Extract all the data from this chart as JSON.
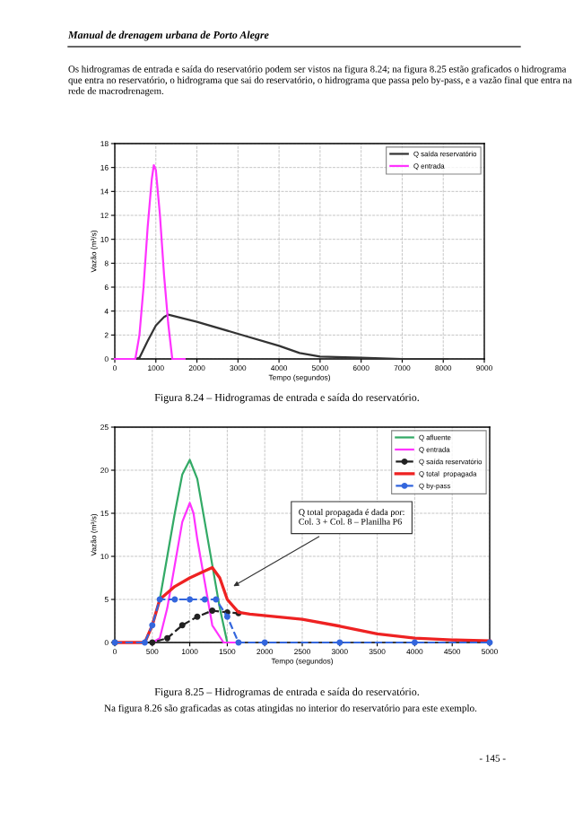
{
  "chart_data": [
    {
      "type": "line",
      "xlabel": "Tempo (segundos)",
      "ylabel": "Vazão (m³/s)",
      "xlim": [
        0,
        9000
      ],
      "xticks": [
        0,
        1000,
        2000,
        3000,
        4000,
        5000,
        6000,
        7000,
        8000,
        9000
      ],
      "ylim": [
        0,
        18
      ],
      "yticks": [
        0,
        2,
        4,
        6,
        8,
        10,
        12,
        14,
        16,
        18
      ],
      "grid": true,
      "legend": "top right",
      "annotations": [
        "Manual de drenagem urbana de Porto Alegre",
        "Os hidrogramas de entrada e saída do reservatório podem ser vistos na figura 8.24; na figura 8.25 estão graficados o hidrograma que entra no reservatório, o hidrograma que sai do reservatório, o hidrograma que passa pelo by-pass, e a vazão final que entra na rede de macrodrenagem.",
        "Figura 8.24 – Hidrogramas de entrada e saída do reservatório."
      ],
      "series": [
        {
          "name": "Q saída reservatório",
          "color": "#333333",
          "x": [
            0,
            500,
            600,
            800,
            1000,
            1200,
            1300,
            2000,
            3000,
            4000,
            4500,
            5000,
            6000,
            7000,
            8100
          ],
          "values": [
            0,
            0,
            0.1,
            1.5,
            2.8,
            3.5,
            3.7,
            3.1,
            2.1,
            1.1,
            0.5,
            0.2,
            0.1,
            0,
            0
          ]
        },
        {
          "name": "Q entrada",
          "color": "#ff33ff",
          "x": [
            0,
            500,
            600,
            700,
            800,
            900,
            950,
            1000,
            1100,
            1200,
            1300,
            1400,
            1500,
            1700
          ],
          "values": [
            0,
            0,
            2,
            6,
            11,
            15,
            16.2,
            15.8,
            12,
            7,
            3,
            0,
            0,
            0
          ]
        }
      ]
    },
    {
      "type": "line",
      "xlabel": "Tempo (segundos)",
      "ylabel": "Vazão (m³/s)",
      "xlim": [
        0,
        5000
      ],
      "xticks": [
        0,
        500,
        1000,
        1500,
        2000,
        2500,
        3000,
        3500,
        4000,
        4500,
        5000
      ],
      "ylim": [
        0,
        25
      ],
      "yticks": [
        0,
        5,
        10,
        15,
        20,
        25
      ],
      "grid": true,
      "legend": "top right",
      "annotations": [
        "Q total propagada é dada por:\nCol. 3 + Col. 8 – Planilha P6",
        "Figura 8.25 – Hidrogramas de entrada e saída do reservatório.",
        "Na figura 8.26 são graficadas as cotas atingidas no interior do reservatório para este exemplo.",
        "- 145 -"
      ],
      "series": [
        {
          "name": "Q afluente",
          "color": "#33aa66",
          "x": [
            400,
            500,
            600,
            700,
            800,
            900,
            1000,
            1100,
            1200,
            1300,
            1400,
            1500
          ],
          "values": [
            0,
            2,
            5,
            10,
            15,
            19.5,
            21.2,
            19,
            14,
            9,
            4,
            0
          ]
        },
        {
          "name": "Q entrada",
          "color": "#ff33ff",
          "x": [
            0,
            500,
            600,
            700,
            800,
            900,
            1000,
            1050,
            1100,
            1200,
            1300,
            1450,
            1700
          ],
          "values": [
            0,
            0,
            0.5,
            4,
            9,
            14,
            16.2,
            15,
            12,
            7,
            2,
            0,
            0
          ]
        },
        {
          "name": "Q saída reservatório",
          "color": "#222222",
          "marker": "circle",
          "line_style": "dashed",
          "x": [
            0,
            500,
            700,
            900,
            1100,
            1300,
            1500,
            1650
          ],
          "values": [
            0,
            0,
            0.5,
            2,
            3,
            3.7,
            3.5,
            3.4
          ]
        },
        {
          "name": "Q total  propagada",
          "color": "#ee2222",
          "x": [
            0,
            400,
            500,
            600,
            800,
            1000,
            1200,
            1300,
            1400,
            1500,
            1650,
            1800,
            2500,
            3000,
            3500,
            4000,
            4500,
            5000
          ],
          "values": [
            0,
            0,
            2,
            5,
            6.5,
            7.5,
            8.3,
            8.7,
            7.5,
            5,
            3.5,
            3.3,
            2.7,
            1.9,
            1.0,
            0.5,
            0.3,
            0.2
          ]
        },
        {
          "name": "Q by-pass",
          "color": "#3366dd",
          "marker": "circle",
          "line_style": "dashed",
          "x": [
            0,
            400,
            500,
            600,
            800,
            1000,
            1200,
            1350,
            1500,
            1650,
            2000,
            3000,
            4000,
            5000
          ],
          "values": [
            0,
            0,
            2,
            5,
            5,
            5,
            5,
            5,
            3,
            0,
            0,
            0,
            0,
            0
          ]
        }
      ]
    }
  ]
}
